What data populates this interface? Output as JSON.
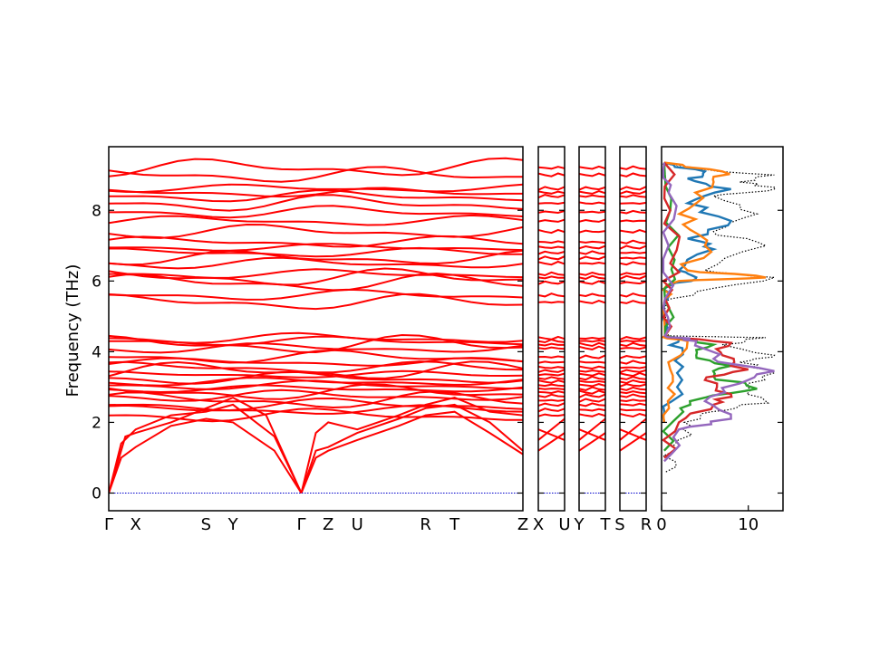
{
  "colors": {
    "band": "#ff0000",
    "zero_line": "#0000cc",
    "dos_total": "#000000",
    "dos_partial": [
      "#1f77b4",
      "#ff7f0e",
      "#2ca02c",
      "#d62728",
      "#9467bd"
    ]
  },
  "chart_data": [
    {
      "type": "line",
      "name": "phonon-band-structure",
      "ylabel": "Frequency (THz)",
      "ylim": [
        -0.5,
        9.8
      ],
      "yticks": [
        0,
        2,
        4,
        6,
        8
      ],
      "segments": [
        {
          "labels": [
            "Γ",
            "X",
            "S",
            "Y",
            "Γ",
            "Z",
            "U",
            "R",
            "T",
            "Z"
          ],
          "positions": [
            0,
            0.065,
            0.235,
            0.3,
            0.465,
            0.53,
            0.6,
            0.765,
            0.835,
            1.0
          ]
        },
        {
          "labels": [
            "X",
            "U"
          ],
          "positions": [
            0,
            1
          ]
        },
        {
          "labels": [
            "Y",
            "T"
          ],
          "positions": [
            0,
            1
          ]
        },
        {
          "labels": [
            "S",
            "R"
          ],
          "positions": [
            0,
            1
          ]
        }
      ],
      "dispersive_branches": [
        [
          [
            0,
            0
          ],
          [
            0.03,
            1.0
          ],
          [
            0.065,
            1.3
          ],
          [
            0.15,
            1.9
          ],
          [
            0.235,
            2.1
          ],
          [
            0.3,
            2.0
          ],
          [
            0.4,
            1.2
          ],
          [
            0.465,
            0
          ]
        ],
        [
          [
            0,
            0
          ],
          [
            0.03,
            1.4
          ],
          [
            0.065,
            1.8
          ],
          [
            0.15,
            2.2
          ],
          [
            0.235,
            2.3
          ],
          [
            0.3,
            2.5
          ],
          [
            0.4,
            1.6
          ],
          [
            0.465,
            0
          ]
        ],
        [
          [
            0,
            0
          ],
          [
            0.04,
            1.6
          ],
          [
            0.065,
            1.7
          ],
          [
            0.15,
            2.0
          ],
          [
            0.235,
            2.4
          ],
          [
            0.3,
            2.7
          ],
          [
            0.38,
            2.2
          ],
          [
            0.465,
            0
          ]
        ],
        [
          [
            0.465,
            0
          ],
          [
            0.5,
            1.0
          ],
          [
            0.53,
            1.2
          ],
          [
            0.6,
            1.5
          ],
          [
            0.7,
            1.9
          ],
          [
            0.765,
            2.2
          ],
          [
            0.835,
            2.3
          ],
          [
            0.92,
            1.7
          ],
          [
            1.0,
            1.1
          ]
        ],
        [
          [
            0.465,
            0
          ],
          [
            0.5,
            1.2
          ],
          [
            0.53,
            1.3
          ],
          [
            0.6,
            1.7
          ],
          [
            0.7,
            2.1
          ],
          [
            0.765,
            2.4
          ],
          [
            0.835,
            2.5
          ],
          [
            0.92,
            2.0
          ],
          [
            1.0,
            1.2
          ]
        ],
        [
          [
            0.465,
            0
          ],
          [
            0.5,
            1.7
          ],
          [
            0.53,
            2.0
          ],
          [
            0.6,
            1.8
          ],
          [
            0.7,
            2.2
          ],
          [
            0.765,
            2.5
          ],
          [
            0.835,
            2.7
          ],
          [
            0.92,
            2.3
          ],
          [
            1.0,
            2.2
          ]
        ]
      ],
      "band_levels": [
        2.2,
        2.35,
        2.5,
        2.62,
        2.75,
        2.85,
        2.95,
        3.05,
        3.15,
        3.25,
        3.35,
        3.45,
        3.55,
        3.7,
        3.85,
        4.1,
        4.2,
        4.3,
        4.38,
        5.4,
        5.6,
        5.95,
        6.1,
        6.2,
        6.5,
        6.65,
        6.8,
        6.95,
        7.1,
        7.4,
        7.7,
        7.95,
        8.2,
        8.4,
        8.5,
        8.62,
        9.0,
        9.2
      ],
      "zero_line_y": 0
    },
    {
      "type": "line",
      "name": "phonon-dos",
      "xlim": [
        0,
        14
      ],
      "xticks": [
        0,
        10
      ],
      "ylim": [
        -0.5,
        9.8
      ],
      "series": [
        {
          "style": "total",
          "points": [
            [
              0.5,
              0.6
            ],
            [
              1.5,
              1.2
            ],
            [
              2.5,
              1.8
            ],
            [
              4.5,
              2.2
            ],
            [
              8.5,
              2.4
            ],
            [
              12,
              2.6
            ],
            [
              10,
              3.0
            ],
            [
              13,
              3.4
            ],
            [
              9,
              3.7
            ],
            [
              13,
              3.9
            ],
            [
              7,
              4.2
            ],
            [
              12,
              4.4
            ],
            [
              0.8,
              4.45
            ],
            [
              0.5,
              5.3
            ],
            [
              4,
              5.7
            ],
            [
              13,
              6.1
            ],
            [
              5,
              6.3
            ],
            [
              12,
              7.0
            ],
            [
              6,
              7.4
            ],
            [
              11,
              7.9
            ],
            [
              6,
              8.4
            ],
            [
              13,
              8.6
            ],
            [
              9,
              8.8
            ],
            [
              13,
              9.0
            ],
            [
              2,
              9.2
            ],
            [
              0.3,
              9.35
            ]
          ]
        },
        {
          "style": "partial-1",
          "points": [
            [
              0.3,
              2.0
            ],
            [
              1.2,
              2.6
            ],
            [
              1.8,
              3.4
            ],
            [
              2.4,
              4.1
            ],
            [
              0.4,
              4.45
            ],
            [
              0.4,
              5.4
            ],
            [
              1.2,
              5.9
            ],
            [
              4,
              6.1
            ],
            [
              2,
              6.3
            ],
            [
              6,
              6.9
            ],
            [
              3,
              7.2
            ],
            [
              8,
              7.7
            ],
            [
              3,
              8.2
            ],
            [
              8,
              8.6
            ],
            [
              3,
              8.9
            ],
            [
              5,
              9.1
            ],
            [
              0.3,
              9.35
            ]
          ]
        },
        {
          "style": "partial-2",
          "points": [
            [
              0.3,
              2.0
            ],
            [
              1.5,
              2.8
            ],
            [
              1.0,
              3.5
            ],
            [
              3.0,
              4.3
            ],
            [
              0.4,
              4.45
            ],
            [
              0.4,
              5.5
            ],
            [
              2.0,
              6.0
            ],
            [
              12,
              6.1
            ],
            [
              3,
              6.3
            ],
            [
              5,
              7.0
            ],
            [
              2.5,
              7.6
            ],
            [
              4,
              8.2
            ],
            [
              6,
              8.8
            ],
            [
              7,
              9.1
            ],
            [
              0.3,
              9.35
            ]
          ]
        },
        {
          "style": "partial-3",
          "points": [
            [
              0.3,
              1.2
            ],
            [
              2.5,
              2.3
            ],
            [
              5,
              2.7
            ],
            [
              11,
              2.95
            ],
            [
              6,
              3.3
            ],
            [
              8,
              3.6
            ],
            [
              4,
              3.9
            ],
            [
              6,
              4.2
            ],
            [
              0.4,
              4.45
            ],
            [
              0.4,
              5.5
            ],
            [
              1.5,
              6.6
            ],
            [
              1,
              8.0
            ],
            [
              0.3,
              9.35
            ]
          ]
        },
        {
          "style": "partial-4",
          "points": [
            [
              0.3,
              1.0
            ],
            [
              2,
              2.0
            ],
            [
              6,
              2.5
            ],
            [
              8,
              2.8
            ],
            [
              5,
              3.2
            ],
            [
              10,
              3.5
            ],
            [
              7,
              3.9
            ],
            [
              8,
              4.25
            ],
            [
              0.4,
              4.45
            ],
            [
              0.4,
              5.5
            ],
            [
              1,
              6.5
            ],
            [
              1,
              8.0
            ],
            [
              0.3,
              9.35
            ]
          ]
        },
        {
          "style": "partial-5",
          "points": [
            [
              0.3,
              0.9
            ],
            [
              2,
              1.8
            ],
            [
              8,
              2.1
            ],
            [
              5,
              2.6
            ],
            [
              9,
              3.1
            ],
            [
              13,
              3.45
            ],
            [
              6,
              3.8
            ],
            [
              4,
              4.3
            ],
            [
              0.4,
              4.45
            ],
            [
              0.4,
              5.5
            ],
            [
              0.8,
              7.0
            ],
            [
              0.8,
              8.5
            ],
            [
              0.3,
              9.35
            ]
          ]
        }
      ]
    }
  ]
}
